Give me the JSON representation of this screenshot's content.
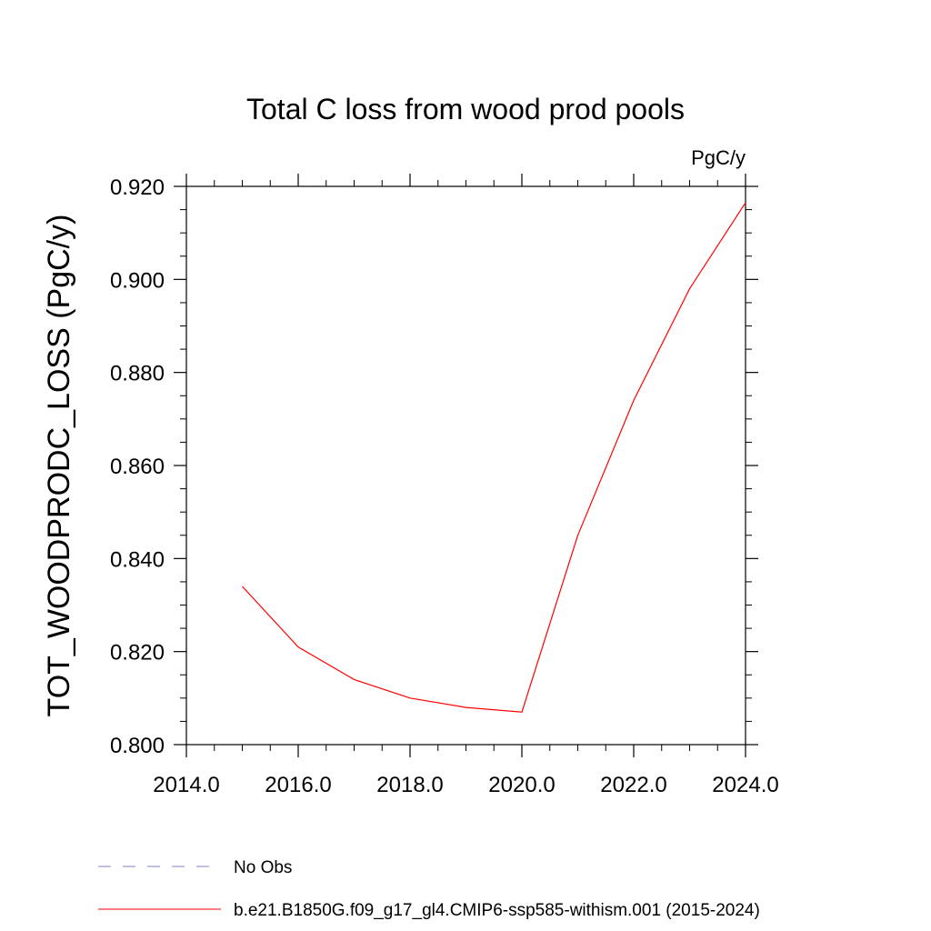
{
  "chart_data": {
    "type": "line",
    "title": "Total C loss from wood prod pools",
    "units_label": "PgC/y",
    "xlabel": "",
    "ylabel": "TOT_WOODPRODC_LOSS  (PgC/y)",
    "xlim": [
      2014.0,
      2024.0
    ],
    "ylim": [
      0.8,
      0.92
    ],
    "x_ticks": [
      "2014.0",
      "2016.0",
      "2018.0",
      "2020.0",
      "2022.0",
      "2024.0"
    ],
    "y_ticks": [
      "0.800",
      "0.820",
      "0.840",
      "0.860",
      "0.880",
      "0.900",
      "0.920"
    ],
    "grid": false,
    "series": [
      {
        "name": "b.e21.B1850G.f09_g17_gl4.CMIP6-ssp585-withism.001 (2015-2024)",
        "color": "#ff0000",
        "x": [
          2015,
          2016,
          2017,
          2018,
          2019,
          2020,
          2021,
          2022,
          2023,
          2024
        ],
        "y": [
          0.834,
          0.821,
          0.814,
          0.81,
          0.808,
          0.807,
          0.845,
          0.874,
          0.898,
          0.9165
        ]
      }
    ],
    "legend": [
      {
        "label": "No Obs",
        "color": "#8080c0",
        "style": "dashed"
      },
      {
        "label": "b.e21.B1850G.f09_g17_gl4.CMIP6-ssp585-withism.001 (2015-2024)",
        "color": "#ff0000",
        "style": "solid"
      }
    ],
    "legend_position": "bottom"
  }
}
